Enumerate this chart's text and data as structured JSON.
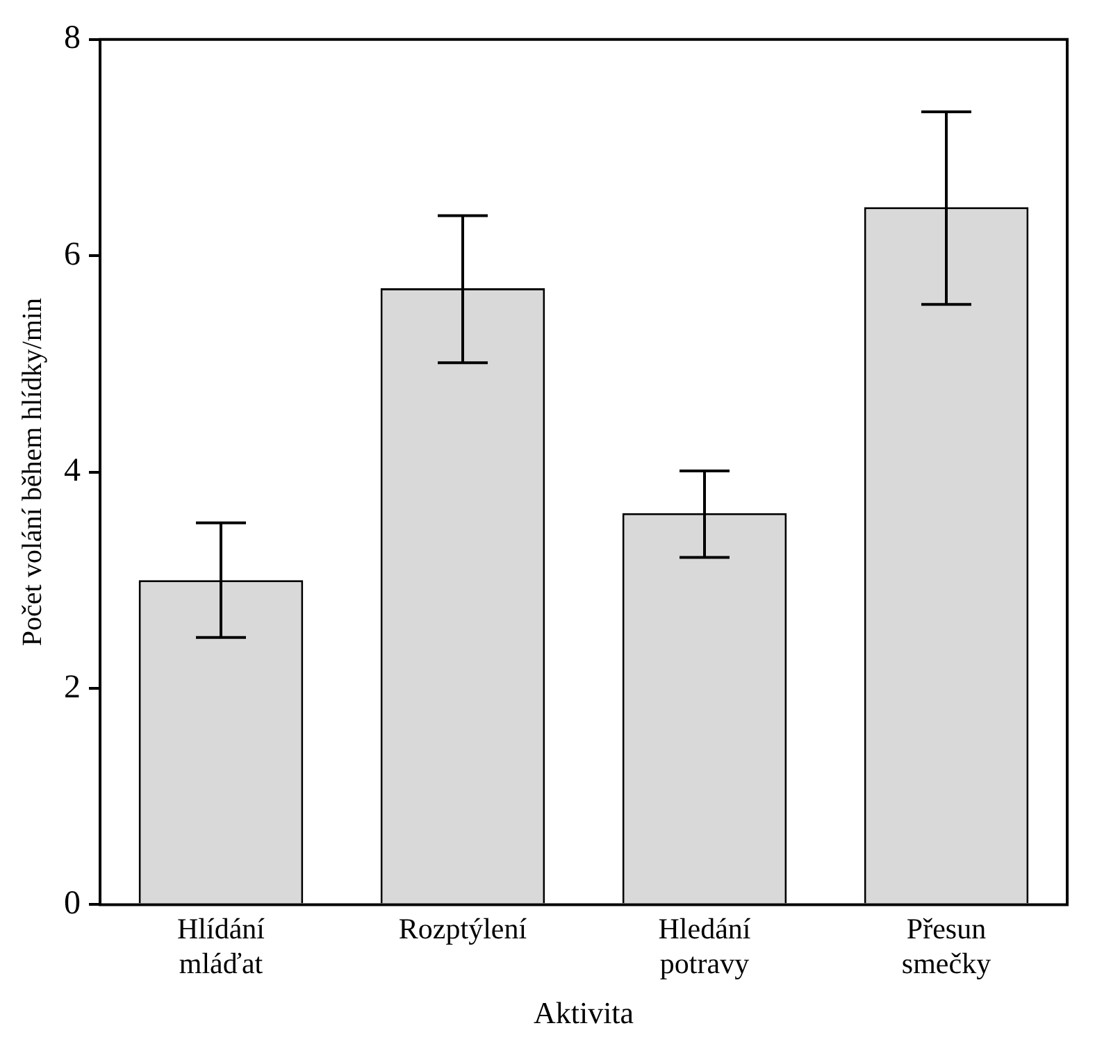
{
  "chart_data": {
    "type": "bar",
    "xlabel": "Aktivita",
    "ylabel": "Počet volání během hlídky/min",
    "categories": [
      "Hlídání\nmláďat",
      "Rozptýlení",
      "Hledání\npotravy",
      "Přesun\nsmečky"
    ],
    "values": [
      3.0,
      5.7,
      3.62,
      6.45
    ],
    "errors": [
      [
        2.47,
        3.53
      ],
      [
        5.01,
        6.37
      ],
      [
        3.21,
        4.01
      ],
      [
        5.55,
        7.33
      ]
    ],
    "color": "#d9d9d9",
    "ylim": [
      0,
      8
    ],
    "yticks": [
      0,
      2,
      4,
      6,
      8
    ],
    "grid": false,
    "legend": false
  }
}
